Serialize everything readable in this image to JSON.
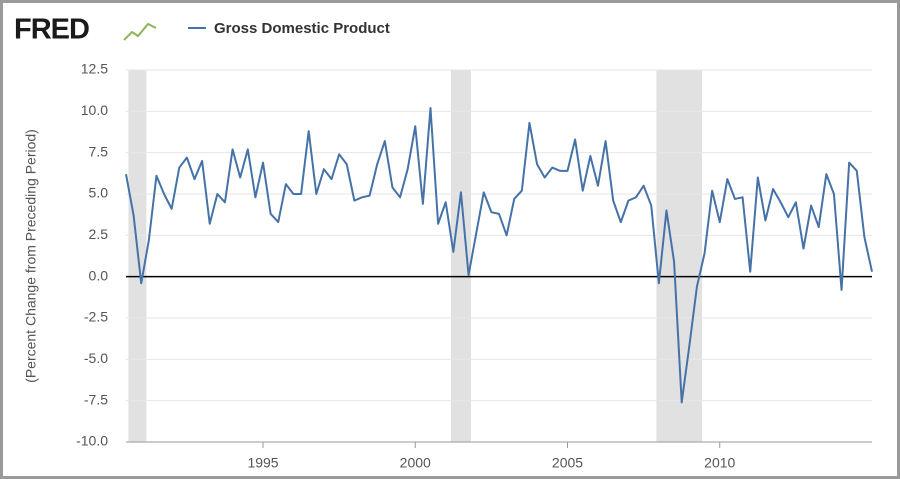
{
  "logo": "FRED",
  "chart_data": {
    "type": "line",
    "y_label": "(Percent Change from Preceding Period)",
    "x": [
      1990.5,
      1990.75,
      1991,
      1991.25,
      1991.5,
      1991.75,
      1992,
      1992.25,
      1992.5,
      1992.75,
      1993,
      1993.25,
      1993.5,
      1993.75,
      1994,
      1994.25,
      1994.5,
      1994.75,
      1995,
      1995.25,
      1995.5,
      1995.75,
      1996,
      1996.25,
      1996.5,
      1996.75,
      1997,
      1997.25,
      1997.5,
      1997.75,
      1998,
      1998.25,
      1998.5,
      1998.75,
      1999,
      1999.25,
      1999.5,
      1999.75,
      2000,
      2000.25,
      2000.5,
      2000.75,
      2001,
      2001.25,
      2001.5,
      2001.75,
      2002,
      2002.25,
      2002.5,
      2002.75,
      2003,
      2003.25,
      2003.5,
      2003.75,
      2004,
      2004.25,
      2004.5,
      2004.75,
      2005,
      2005.25,
      2005.5,
      2005.75,
      2006,
      2006.25,
      2006.5,
      2006.75,
      2007,
      2007.25,
      2007.5,
      2007.75,
      2008,
      2008.25,
      2008.5,
      2008.75,
      2009,
      2009.25,
      2009.5,
      2009.75,
      2010,
      2010.25,
      2010.5,
      2010.75,
      2011,
      2011.25,
      2011.5,
      2011.75,
      2012,
      2012.25,
      2012.5,
      2012.75,
      2013,
      2013.25,
      2013.5,
      2013.75,
      2014,
      2014.25,
      2014.5,
      2014.75,
      2015
    ],
    "series": [
      {
        "name": "Gross Domestic Product",
        "color": "#4572a7",
        "values": [
          6.2,
          3.7,
          -0.4,
          2.2,
          6.1,
          5.0,
          4.1,
          6.6,
          7.2,
          5.9,
          7.0,
          3.2,
          5.0,
          4.5,
          7.7,
          6.0,
          7.7,
          4.8,
          6.9,
          3.8,
          3.3,
          5.6,
          5.0,
          5.0,
          8.8,
          5.0,
          6.5,
          5.9,
          7.4,
          6.8,
          4.6,
          4.8,
          4.9,
          6.8,
          8.2,
          5.4,
          4.8,
          6.5,
          9.1,
          4.4,
          10.2,
          3.2,
          4.5,
          1.5,
          5.1,
          0.1,
          2.6,
          5.1,
          3.9,
          3.8,
          2.5,
          4.7,
          5.2,
          9.3,
          6.8,
          6.0,
          6.6,
          6.4,
          6.4,
          8.3,
          5.2,
          7.3,
          5.5,
          8.2,
          4.6,
          3.3,
          4.6,
          4.8,
          5.5,
          4.3,
          -0.4,
          4.0,
          0.9,
          -7.6,
          -4.2,
          -0.6,
          1.4,
          5.2,
          3.3,
          5.9,
          4.7,
          4.8,
          0.3,
          6.0,
          3.4,
          5.3,
          4.5,
          3.6,
          4.5,
          1.7,
          4.3,
          3.0,
          6.2,
          5.0,
          -0.8,
          6.9,
          6.4,
          2.4,
          0.3
        ]
      }
    ],
    "recessions": [
      [
        1990.58,
        1991.17
      ],
      [
        2001.17,
        2001.83
      ],
      [
        2007.92,
        2009.42
      ]
    ],
    "recession_color": "#e1e1e1",
    "xlim": [
      1990.5,
      2015.0
    ],
    "xticks": [
      1995,
      2000,
      2005,
      2010
    ],
    "ylim": [
      -10,
      12.5
    ],
    "yticks": [
      12.5,
      {
        "value": 10,
        "label": "10.0"
      },
      7.5,
      {
        "value": 5,
        "label": "5.0"
      },
      2.5,
      {
        "value": 0,
        "label": "0.0"
      },
      -2.5,
      {
        "value": -5,
        "label": "-5.0"
      },
      -7.5,
      {
        "value": -10,
        "label": "-10.0"
      }
    ],
    "grid": true
  }
}
